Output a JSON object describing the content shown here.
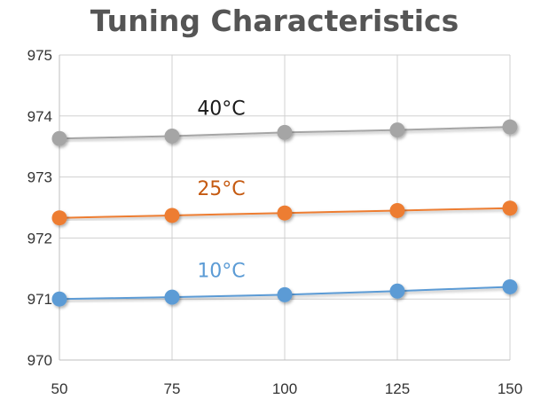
{
  "chart_data": {
    "type": "line",
    "title": "Tuning Characteristics",
    "xlabel": "",
    "ylabel": "",
    "x": [
      50,
      75,
      100,
      125,
      150
    ],
    "xlim": [
      50,
      150
    ],
    "ylim": [
      970,
      975
    ],
    "x_ticks": [
      "50",
      "75",
      "100",
      "125",
      "150"
    ],
    "y_ticks": [
      "970",
      "971",
      "972",
      "973",
      "974",
      "975"
    ],
    "grid": true,
    "legend": "none",
    "series": [
      {
        "name": "10°C",
        "color": "#5b9bd5",
        "values": [
          971.0,
          971.03,
          971.07,
          971.13,
          971.2
        ]
      },
      {
        "name": "25°C",
        "color": "#ed7d31",
        "values": [
          972.33,
          972.37,
          972.41,
          972.45,
          972.49
        ]
      },
      {
        "name": "40°C",
        "color": "#a5a5a5",
        "values": [
          973.63,
          973.67,
          973.73,
          973.77,
          973.82
        ]
      }
    ],
    "label_colors": {
      "10°C": "#5b9bd5",
      "25°C": "#c55a11",
      "40°C": "#1a1a1a"
    }
  }
}
